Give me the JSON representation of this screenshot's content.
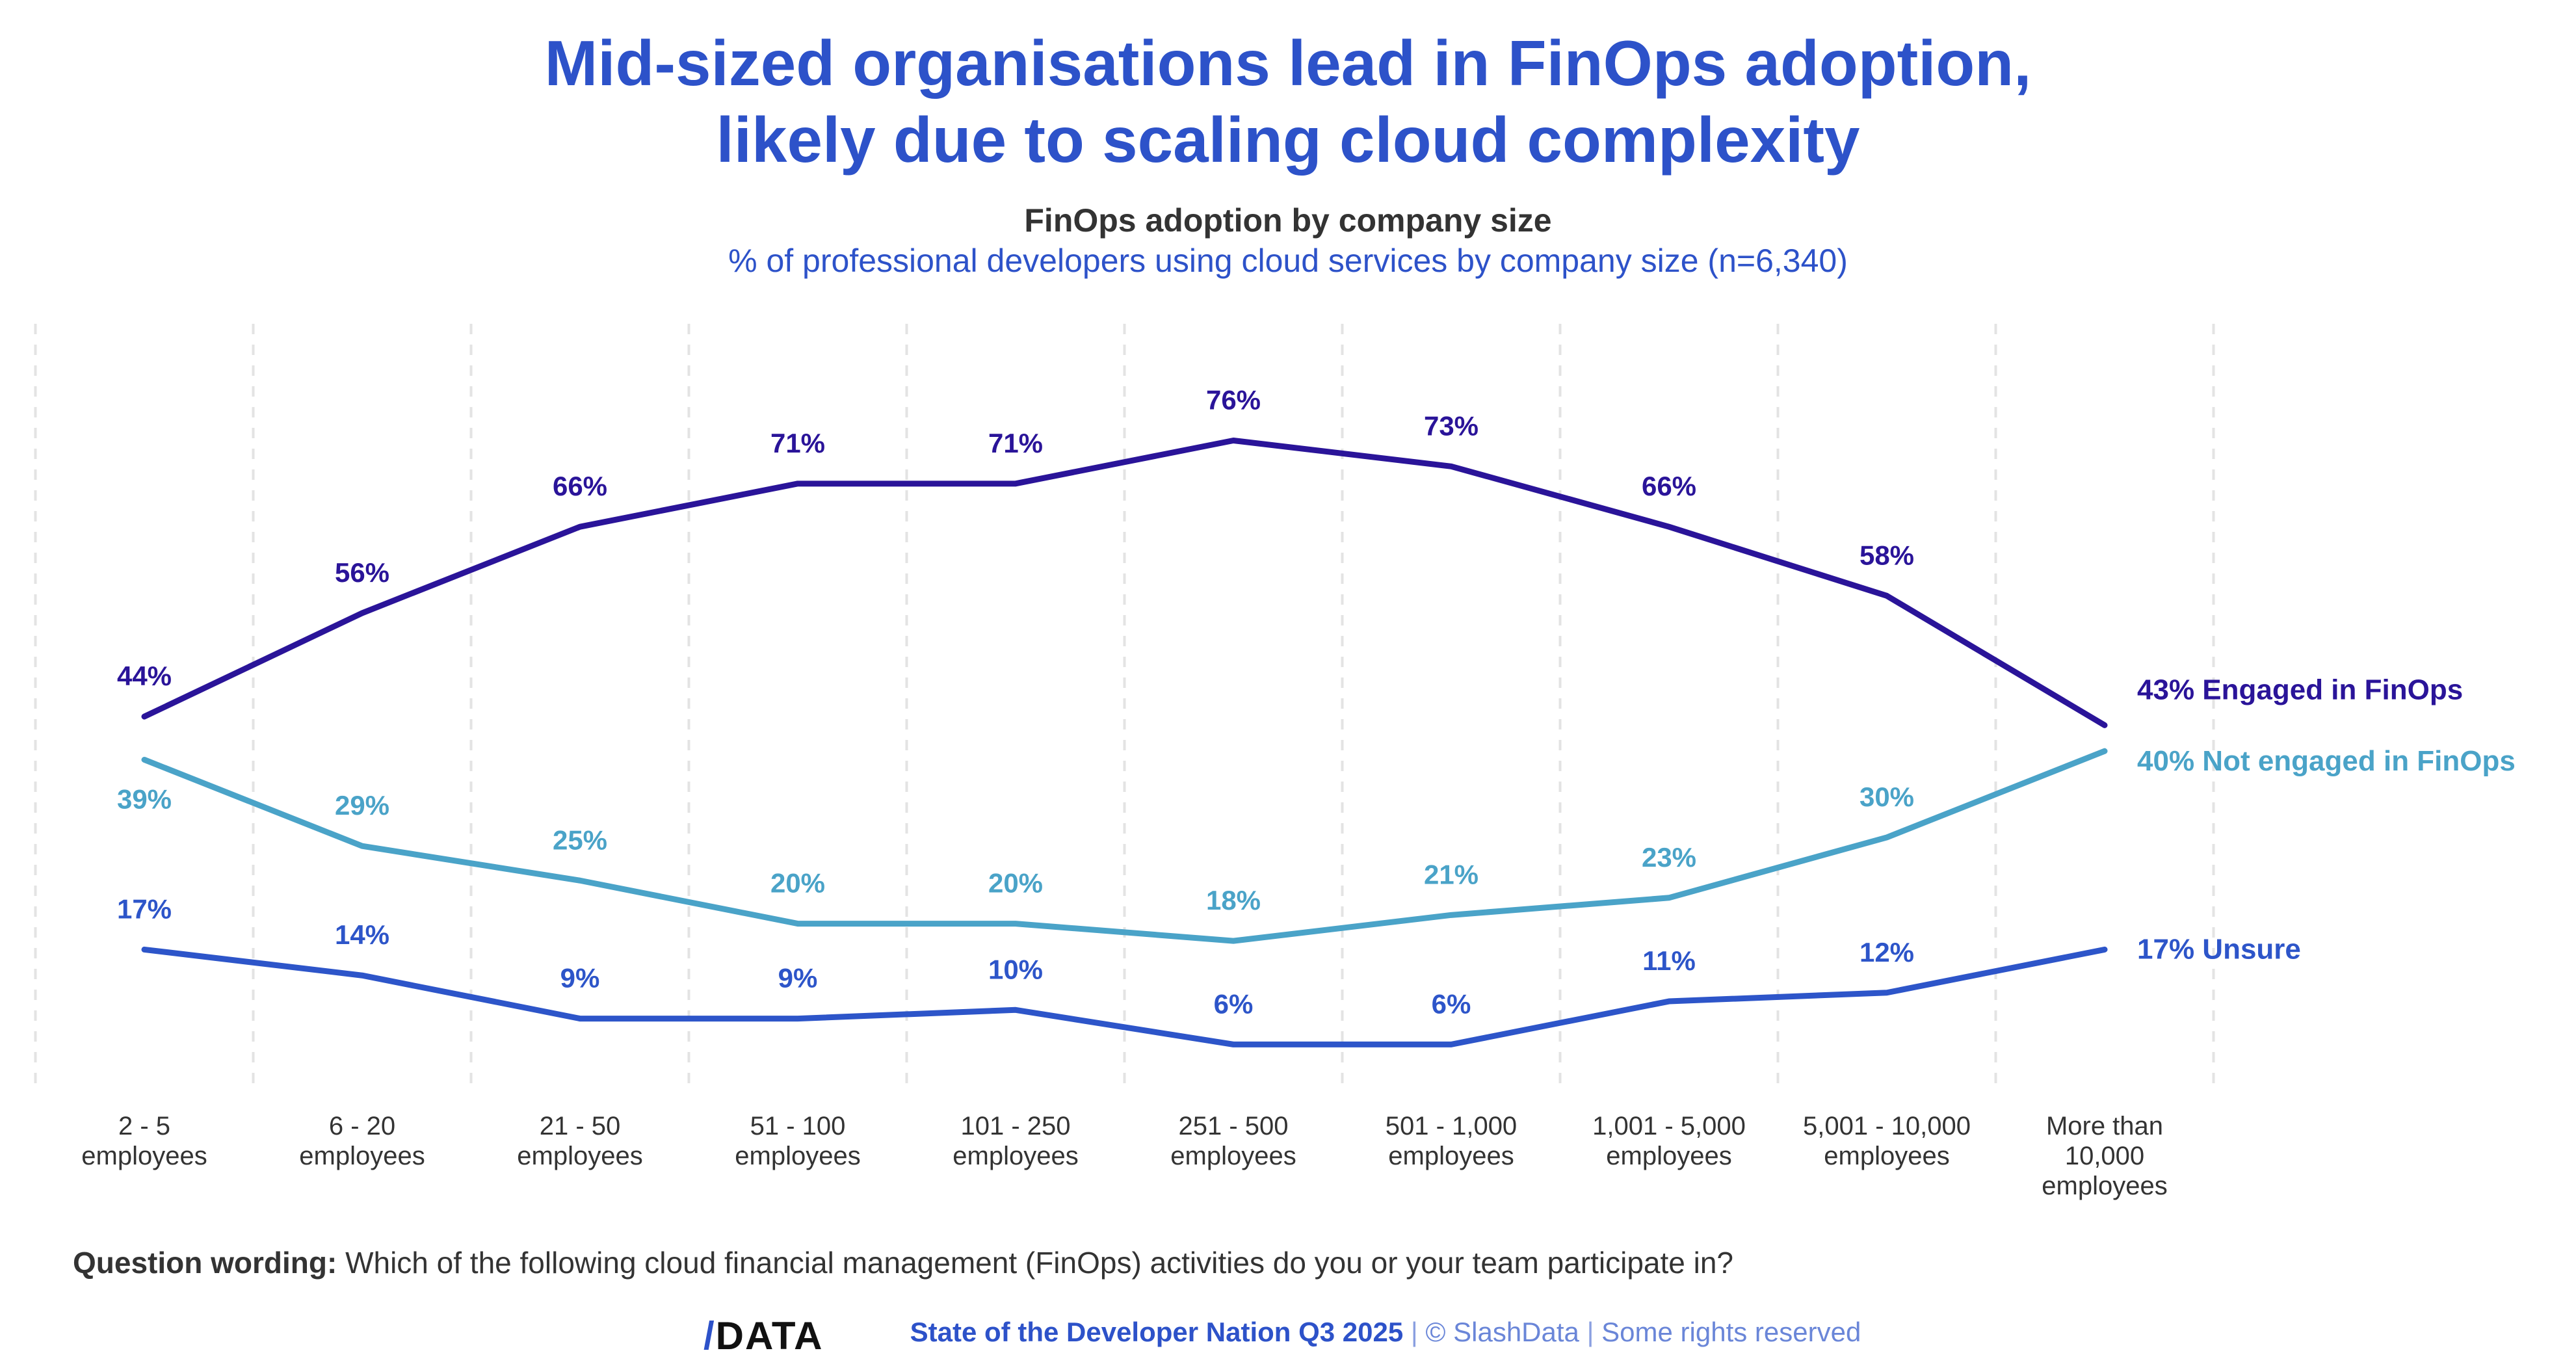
{
  "title_line1": "Mid-sized organisations lead in FinOps adoption,",
  "title_line2": "likely due to scaling cloud complexity",
  "subtitle": "FinOps adoption by company size",
  "subtitle2": "% of professional developers using cloud services by company size (n=6,340)",
  "question_label": "Question wording:",
  "question_text": "Which of the following cloud financial management (FinOps) activities do you or your team participate in?",
  "footer": {
    "logo": "/DATA",
    "report": "State of the Developer Nation Q3 2025",
    "copyright": "© SlashData",
    "rights": "Some rights reserved"
  },
  "chart_data": {
    "type": "line",
    "categories": [
      [
        "2 - 5",
        "employees"
      ],
      [
        "6 - 20",
        "employees"
      ],
      [
        "21 - 50",
        "employees"
      ],
      [
        "51 - 100",
        "employees"
      ],
      [
        "101 - 250",
        "employees"
      ],
      [
        "251 - 500",
        "employees"
      ],
      [
        "501 - 1,000",
        "employees"
      ],
      [
        "1,001 - 5,000",
        "employees"
      ],
      [
        "5,001 - 10,000",
        "employees"
      ],
      [
        "More than",
        "10,000",
        "employees"
      ]
    ],
    "ylim": [
      0,
      100
    ],
    "grid": "vertical dashed",
    "series": [
      {
        "name": "Engaged in FinOps",
        "color": "#2a1499",
        "values": [
          44,
          56,
          66,
          71,
          71,
          76,
          73,
          66,
          58,
          43
        ],
        "label_pos": "above"
      },
      {
        "name": "Not engaged in FinOps",
        "color": "#4aa3c8",
        "values": [
          39,
          29,
          25,
          20,
          20,
          18,
          21,
          23,
          30,
          40
        ],
        "label_pos": "below-first"
      },
      {
        "name": "Unsure",
        "color": "#2d55c9",
        "values": [
          17,
          14,
          9,
          9,
          10,
          6,
          6,
          11,
          12,
          17
        ],
        "label_pos": "above"
      }
    ]
  }
}
